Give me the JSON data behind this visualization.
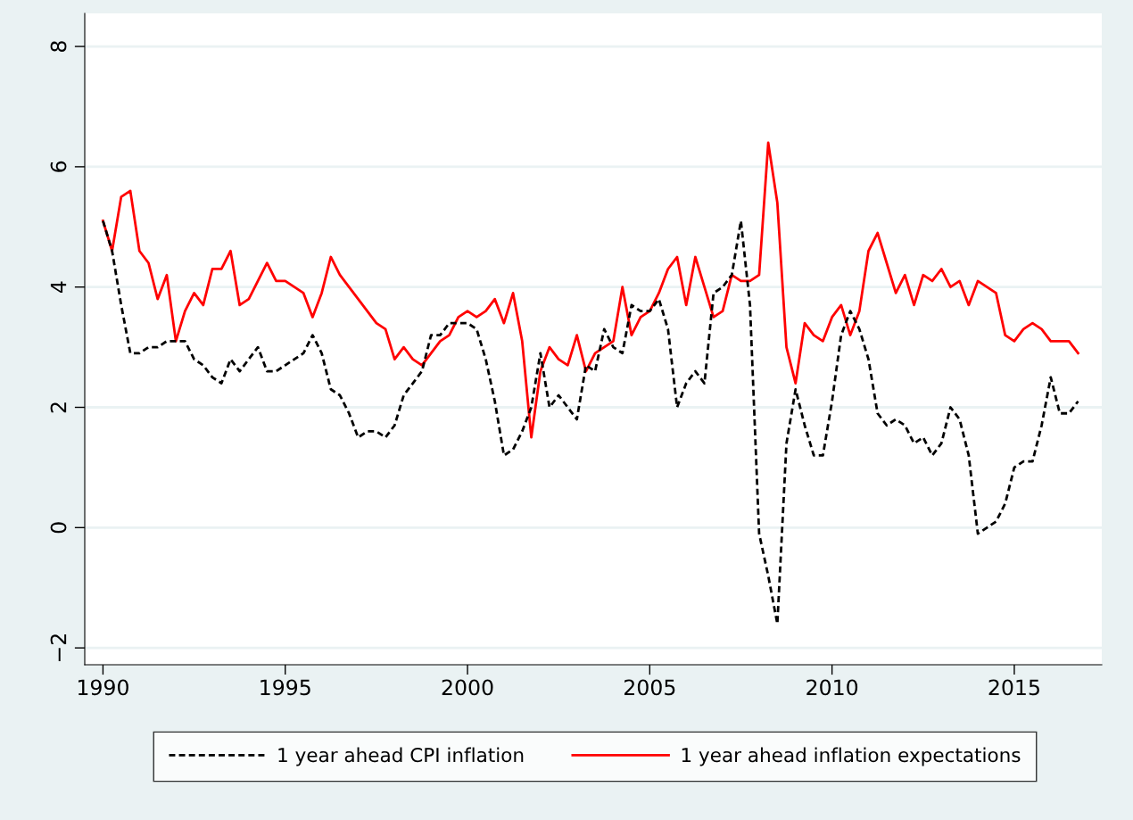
{
  "chart_data": {
    "type": "line",
    "x": [
      1990,
      1990.25,
      1990.5,
      1990.75,
      1991,
      1991.25,
      1991.5,
      1991.75,
      1992,
      1992.25,
      1992.5,
      1992.75,
      1993,
      1993.25,
      1993.5,
      1993.75,
      1994,
      1994.25,
      1994.5,
      1994.75,
      1995,
      1995.25,
      1995.5,
      1995.75,
      1996,
      1996.25,
      1996.5,
      1996.75,
      1997,
      1997.25,
      1997.5,
      1997.75,
      1998,
      1998.25,
      1998.5,
      1998.75,
      1999,
      1999.25,
      1999.5,
      1999.75,
      2000,
      2000.25,
      2000.5,
      2000.75,
      2001,
      2001.25,
      2001.5,
      2001.75,
      2002,
      2002.25,
      2002.5,
      2002.75,
      2003,
      2003.25,
      2003.5,
      2003.75,
      2004,
      2004.25,
      2004.5,
      2004.75,
      2005,
      2005.25,
      2005.5,
      2005.75,
      2006,
      2006.25,
      2006.5,
      2006.75,
      2007,
      2007.25,
      2007.5,
      2007.75,
      2008,
      2008.25,
      2008.5,
      2008.75,
      2009,
      2009.25,
      2009.5,
      2009.75,
      2010,
      2010.25,
      2010.5,
      2010.75,
      2011,
      2011.25,
      2011.5,
      2011.75,
      2012,
      2012.25,
      2012.5,
      2012.75,
      2013,
      2013.25,
      2013.5,
      2013.75,
      2014,
      2014.25,
      2014.5,
      2014.75,
      2015,
      2015.25,
      2015.5,
      2015.75,
      2016,
      2016.25,
      2016.5,
      2016.75
    ],
    "series": [
      {
        "name": "1 year ahead CPI inflation",
        "color": "#000000",
        "line_style": "dashed",
        "values": [
          5.1,
          4.6,
          3.7,
          2.9,
          2.9,
          3.0,
          3.0,
          3.1,
          3.1,
          3.1,
          2.8,
          2.7,
          2.5,
          2.4,
          2.8,
          2.6,
          2.8,
          3.0,
          2.6,
          2.6,
          2.7,
          2.8,
          2.9,
          3.2,
          2.9,
          2.3,
          2.2,
          1.9,
          1.5,
          1.6,
          1.6,
          1.5,
          1.7,
          2.2,
          2.4,
          2.6,
          3.2,
          3.2,
          3.4,
          3.4,
          3.4,
          3.3,
          2.8,
          2.1,
          1.2,
          1.3,
          1.6,
          2.0,
          2.9,
          2.0,
          2.2,
          2.0,
          1.8,
          2.7,
          2.6,
          3.3,
          3.0,
          2.9,
          3.7,
          3.6,
          3.6,
          3.8,
          3.3,
          2.0,
          2.4,
          2.6,
          2.4,
          3.9,
          4.0,
          4.2,
          5.1,
          3.7,
          -0.1,
          -0.8,
          -1.6,
          1.4,
          2.3,
          1.7,
          1.2,
          1.2,
          2.1,
          3.2,
          3.6,
          3.3,
          2.8,
          1.9,
          1.7,
          1.8,
          1.7,
          1.4,
          1.5,
          1.2,
          1.4,
          2.0,
          1.8,
          1.2,
          -0.1,
          0.0,
          0.1,
          0.4,
          1.0,
          1.1,
          1.1,
          1.7,
          2.5,
          1.9,
          1.9,
          2.1
        ]
      },
      {
        "name": "1 year ahead inflation expectations",
        "color": "#ff0000",
        "line_style": "solid",
        "values": [
          5.1,
          4.6,
          5.5,
          5.6,
          4.6,
          4.4,
          3.8,
          4.2,
          3.1,
          3.6,
          3.9,
          3.7,
          4.3,
          4.3,
          4.6,
          3.7,
          3.8,
          4.1,
          4.4,
          4.1,
          4.1,
          4.0,
          3.9,
          3.5,
          3.9,
          4.5,
          4.2,
          4.0,
          3.8,
          3.6,
          3.4,
          3.3,
          2.8,
          3.0,
          2.8,
          2.7,
          2.9,
          3.1,
          3.2,
          3.5,
          3.6,
          3.5,
          3.6,
          3.8,
          3.4,
          3.9,
          3.1,
          1.5,
          2.6,
          3.0,
          2.8,
          2.7,
          3.2,
          2.6,
          2.9,
          3.0,
          3.1,
          4.0,
          3.2,
          3.5,
          3.6,
          3.9,
          4.3,
          4.5,
          3.7,
          4.5,
          4.0,
          3.5,
          3.6,
          4.2,
          4.1,
          4.1,
          4.2,
          6.4,
          5.4,
          3.0,
          2.4,
          3.4,
          3.2,
          3.1,
          3.5,
          3.7,
          3.2,
          3.6,
          4.6,
          4.9,
          4.4,
          3.9,
          4.2,
          3.7,
          4.2,
          4.1,
          4.3,
          4.0,
          4.1,
          3.7,
          4.1,
          4.0,
          3.9,
          3.2,
          3.1,
          3.3,
          3.4,
          3.3,
          3.1,
          3.1,
          3.1,
          2.9
        ]
      }
    ],
    "xlim": [
      1989.5,
      2017.4
    ],
    "ylim": [
      -2.28,
      8.55
    ],
    "xticks": [
      1990,
      1995,
      2000,
      2005,
      2010,
      2015
    ],
    "yticks": [
      {
        "value": -2,
        "label": "−2"
      },
      0,
      2,
      4,
      6,
      8
    ],
    "grid": "y",
    "legend": "bottom"
  }
}
